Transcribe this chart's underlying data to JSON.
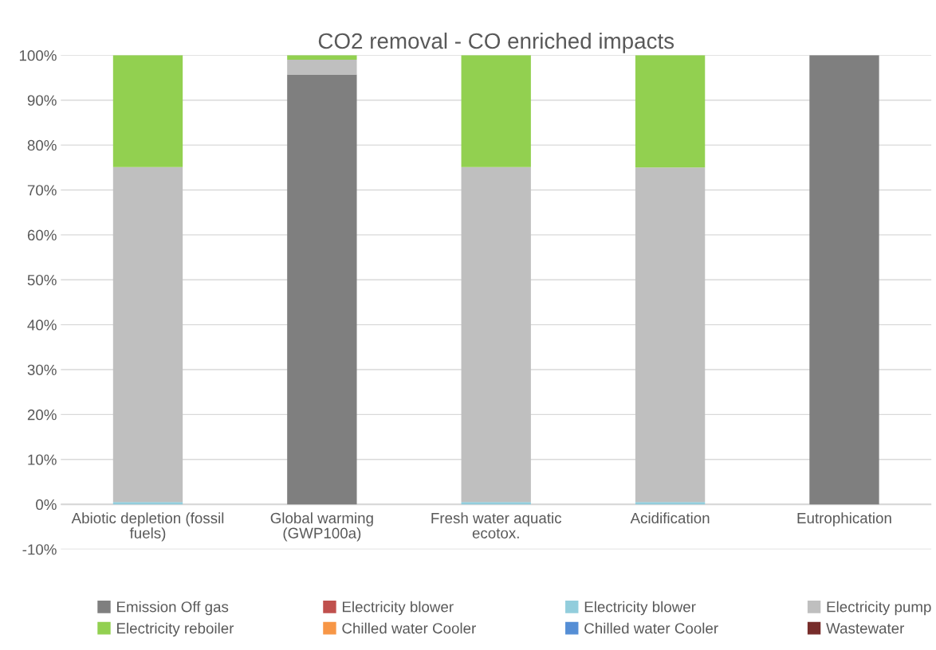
{
  "chart_data": {
    "type": "bar",
    "stacked": true,
    "title": "CO2 removal - CO enriched impacts",
    "categories": [
      "Abiotic depletion (fossil fuels)",
      "Global warming (GWP100a)",
      "Fresh water aquatic ecotox.",
      "Acidification",
      "Eutrophication"
    ],
    "series": [
      {
        "name": "Emission Off gas",
        "color": "#7f7f7f",
        "values": [
          0,
          95.7,
          0,
          0,
          100
        ]
      },
      {
        "name": "Electricity blower",
        "color": "#c0504d",
        "values": [
          0,
          0,
          0,
          0,
          0
        ]
      },
      {
        "name": "Electricity blower",
        "color": "#92cddc",
        "values": [
          0.5,
          0,
          0.5,
          0.5,
          0
        ]
      },
      {
        "name": "Electricity pump",
        "color": "#bfbfbf",
        "values": [
          74.6,
          3.3,
          74.6,
          74.5,
          0
        ]
      },
      {
        "name": "Electricity reboiler",
        "color": "#92d050",
        "values": [
          24.9,
          1.0,
          24.9,
          25.0,
          null
        ]
      },
      {
        "name": "Chilled water Cooler",
        "color": "#f79646",
        "values": [
          0,
          0,
          0,
          0,
          0
        ]
      },
      {
        "name": "Chilled water Cooler",
        "color": "#558ed5",
        "values": [
          0,
          0,
          0,
          0,
          0
        ]
      },
      {
        "name": "Wastewater",
        "color": "#772c2a",
        "values": [
          0,
          0,
          0,
          null,
          0
        ]
      }
    ],
    "ylim": [
      -10,
      100
    ],
    "yticks": [
      {
        "value": -10,
        "label": "-10%"
      },
      {
        "value": 0,
        "label": "0%"
      },
      {
        "value": 10,
        "label": "10%"
      },
      {
        "value": 20,
        "label": "20%"
      },
      {
        "value": 30,
        "label": "30%"
      },
      {
        "value": 40,
        "label": "40%"
      },
      {
        "value": 50,
        "label": "50%"
      },
      {
        "value": 60,
        "label": "60%"
      },
      {
        "value": 70,
        "label": "70%"
      },
      {
        "value": 80,
        "label": "80%"
      },
      {
        "value": 90,
        "label": "90%"
      },
      {
        "value": 100,
        "label": "100%"
      }
    ],
    "grid": "y",
    "legend": "bottom"
  }
}
